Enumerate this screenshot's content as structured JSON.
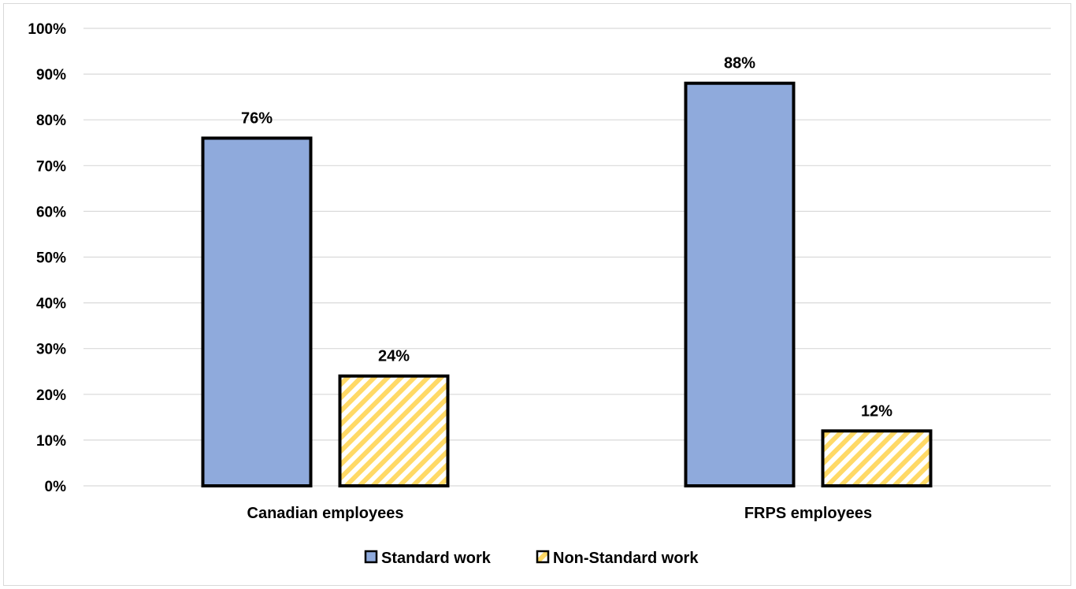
{
  "chart_data": {
    "type": "bar",
    "categories": [
      "Canadian employees",
      "FRPS employees"
    ],
    "series": [
      {
        "name": "Standard work",
        "values": [
          76,
          88
        ],
        "data_labels": [
          "76%",
          "88%"
        ],
        "color": "#8faadc",
        "pattern": "solid"
      },
      {
        "name": "Non-Standard work",
        "values": [
          24,
          12
        ],
        "data_labels": [
          "24%",
          "12%"
        ],
        "color": "#ffd966",
        "pattern": "diagonal-stripes"
      }
    ],
    "y_ticks": [
      "0%",
      "10%",
      "20%",
      "30%",
      "40%",
      "50%",
      "60%",
      "70%",
      "80%",
      "90%",
      "100%"
    ],
    "ylim": [
      0,
      100
    ],
    "title": "",
    "xlabel": "",
    "ylabel": "",
    "grid": true,
    "legend_position": "bottom"
  }
}
